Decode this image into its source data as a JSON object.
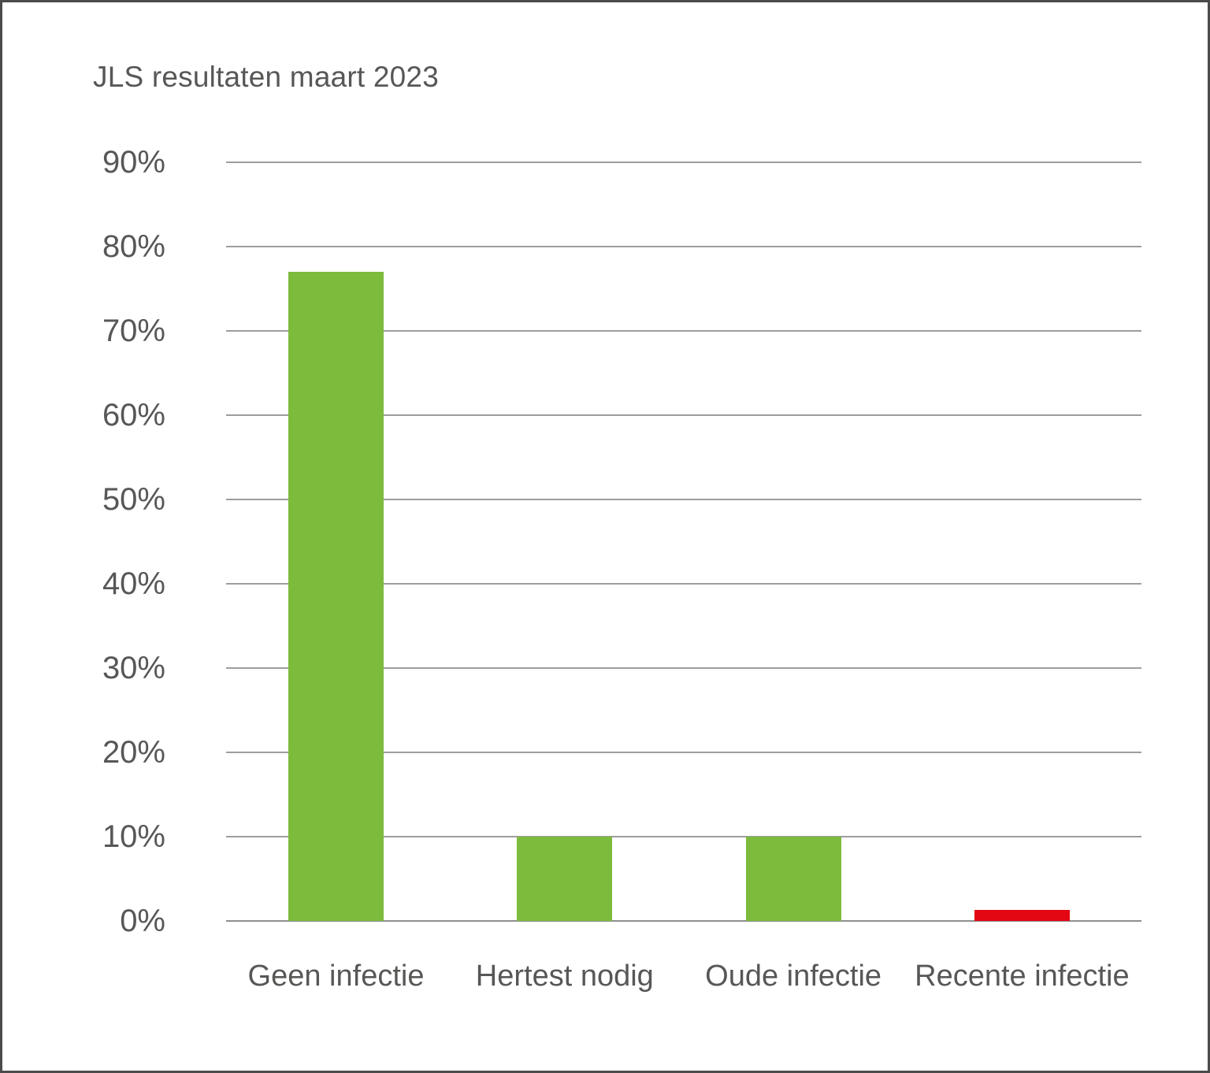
{
  "chart_data": {
    "type": "bar",
    "title": "JLS resultaten maart 2023",
    "categories": [
      "Geen infectie",
      "Hertest nodig",
      "Oude infectie",
      "Recente infectie"
    ],
    "values": [
      77,
      10,
      10,
      1.3
    ],
    "bar_colors": [
      "#7dbb3d",
      "#7dbb3d",
      "#7dbb3d",
      "#e30613"
    ],
    "xlabel": "",
    "ylabel": "",
    "ylim": [
      0,
      90
    ],
    "ytick_values": [
      90,
      80,
      70,
      60,
      50,
      40,
      30,
      20,
      10,
      0
    ],
    "ytick_labels": [
      "90%",
      "80%",
      "70%",
      "60%",
      "50%",
      "40%",
      "30%",
      "20%",
      "10%",
      "0%"
    ],
    "grid": "horizontal-only",
    "legend": "none",
    "colors": {
      "text": "#575756",
      "gridline": "#9d9d9d",
      "frame_border": "#4b4b4b",
      "background": "#ffffff",
      "green": "#7dbb3d",
      "red": "#e30613"
    }
  }
}
